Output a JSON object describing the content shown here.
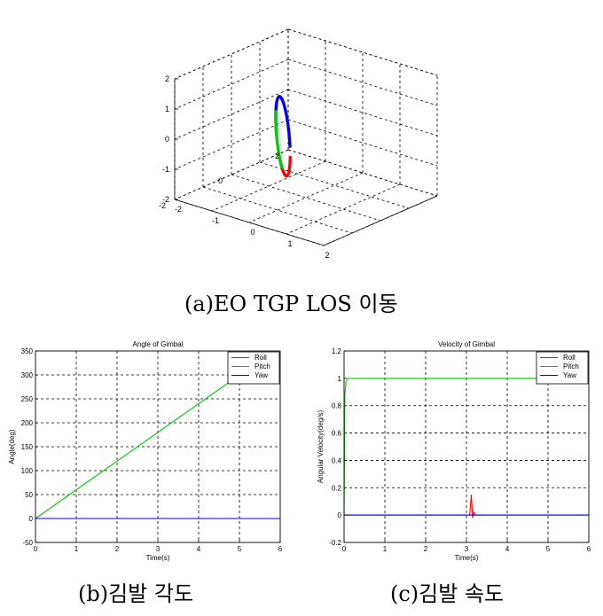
{
  "captions": {
    "a": "(a)EO TGP LOS 이동",
    "b": "(b)김발 각도",
    "c": "(c)김발 속도"
  },
  "chart_data": [
    {
      "type": "line",
      "id": "3d",
      "title": "",
      "axes": {
        "x": {
          "ticks": [
            "-2",
            "-1",
            "0",
            "1",
            "2"
          ]
        },
        "y": {
          "ticks": [
            "-2",
            "0",
            "2"
          ]
        },
        "z": {
          "ticks": [
            "-2",
            "-1",
            "0",
            "1",
            "2"
          ],
          "lim": [
            -2,
            2
          ]
        }
      },
      "grid": true,
      "series": [
        {
          "color": "#0000ff",
          "segment": "upper arc"
        },
        {
          "color": "#ff0000",
          "segment": "right-lower arc"
        },
        {
          "color": "#00cc00",
          "segment": "left arc"
        }
      ]
    },
    {
      "type": "line",
      "id": "angle",
      "title": "Angle of Gimbal",
      "xlabel": "Time(s)",
      "ylabel": "Angle(deg)",
      "xlim": [
        0,
        6
      ],
      "ylim": [
        -50,
        350
      ],
      "xticks": [
        "0",
        "1",
        "2",
        "3",
        "4",
        "5",
        "6"
      ],
      "yticks": [
        "-50",
        "0",
        "50",
        "100",
        "150",
        "200",
        "250",
        "300",
        "350"
      ],
      "legend": {
        "placement": "top-right"
      },
      "grid": true,
      "series": [
        {
          "name": "Roll",
          "color": "#ff0000",
          "x": [
            0,
            6
          ],
          "y": [
            0,
            0
          ]
        },
        {
          "name": "Pitch",
          "color": "#00cc00",
          "x": [
            0,
            5.0
          ],
          "y": [
            0,
            300
          ]
        },
        {
          "name": "Yaw",
          "color": "#0000ff",
          "x": [
            0,
            6
          ],
          "y": [
            0,
            0
          ]
        }
      ]
    },
    {
      "type": "line",
      "id": "velocity",
      "title": "Velocity of Gimbal",
      "xlabel": "Time(s)",
      "ylabel": "Angular Velocity(deg/s)",
      "xlim": [
        0,
        6
      ],
      "ylim": [
        -0.2,
        1.2
      ],
      "xticks": [
        "0",
        "1",
        "2",
        "3",
        "4",
        "5",
        "6"
      ],
      "yticks": [
        "-0.2",
        "0",
        "0.2",
        "0.4",
        "0.6",
        "0.8",
        "1",
        "1.2"
      ],
      "legend": {
        "placement": "top-right"
      },
      "grid": true,
      "series": [
        {
          "name": "Roll",
          "color": "#ff0000",
          "x": [
            0,
            3.08,
            3.12,
            3.15,
            3.18,
            3.22,
            6
          ],
          "y": [
            0,
            0,
            0.15,
            -0.02,
            0.02,
            0,
            0
          ]
        },
        {
          "name": "Pitch",
          "color": "#00cc00",
          "x": [
            0,
            0.02,
            0.05,
            0.1,
            0.15,
            6
          ],
          "y": [
            0,
            0.88,
            0.98,
            1.0,
            1.0,
            1.0
          ]
        },
        {
          "name": "Yaw",
          "color": "#0000ff",
          "x": [
            0,
            6
          ],
          "y": [
            0,
            0
          ]
        }
      ]
    }
  ]
}
